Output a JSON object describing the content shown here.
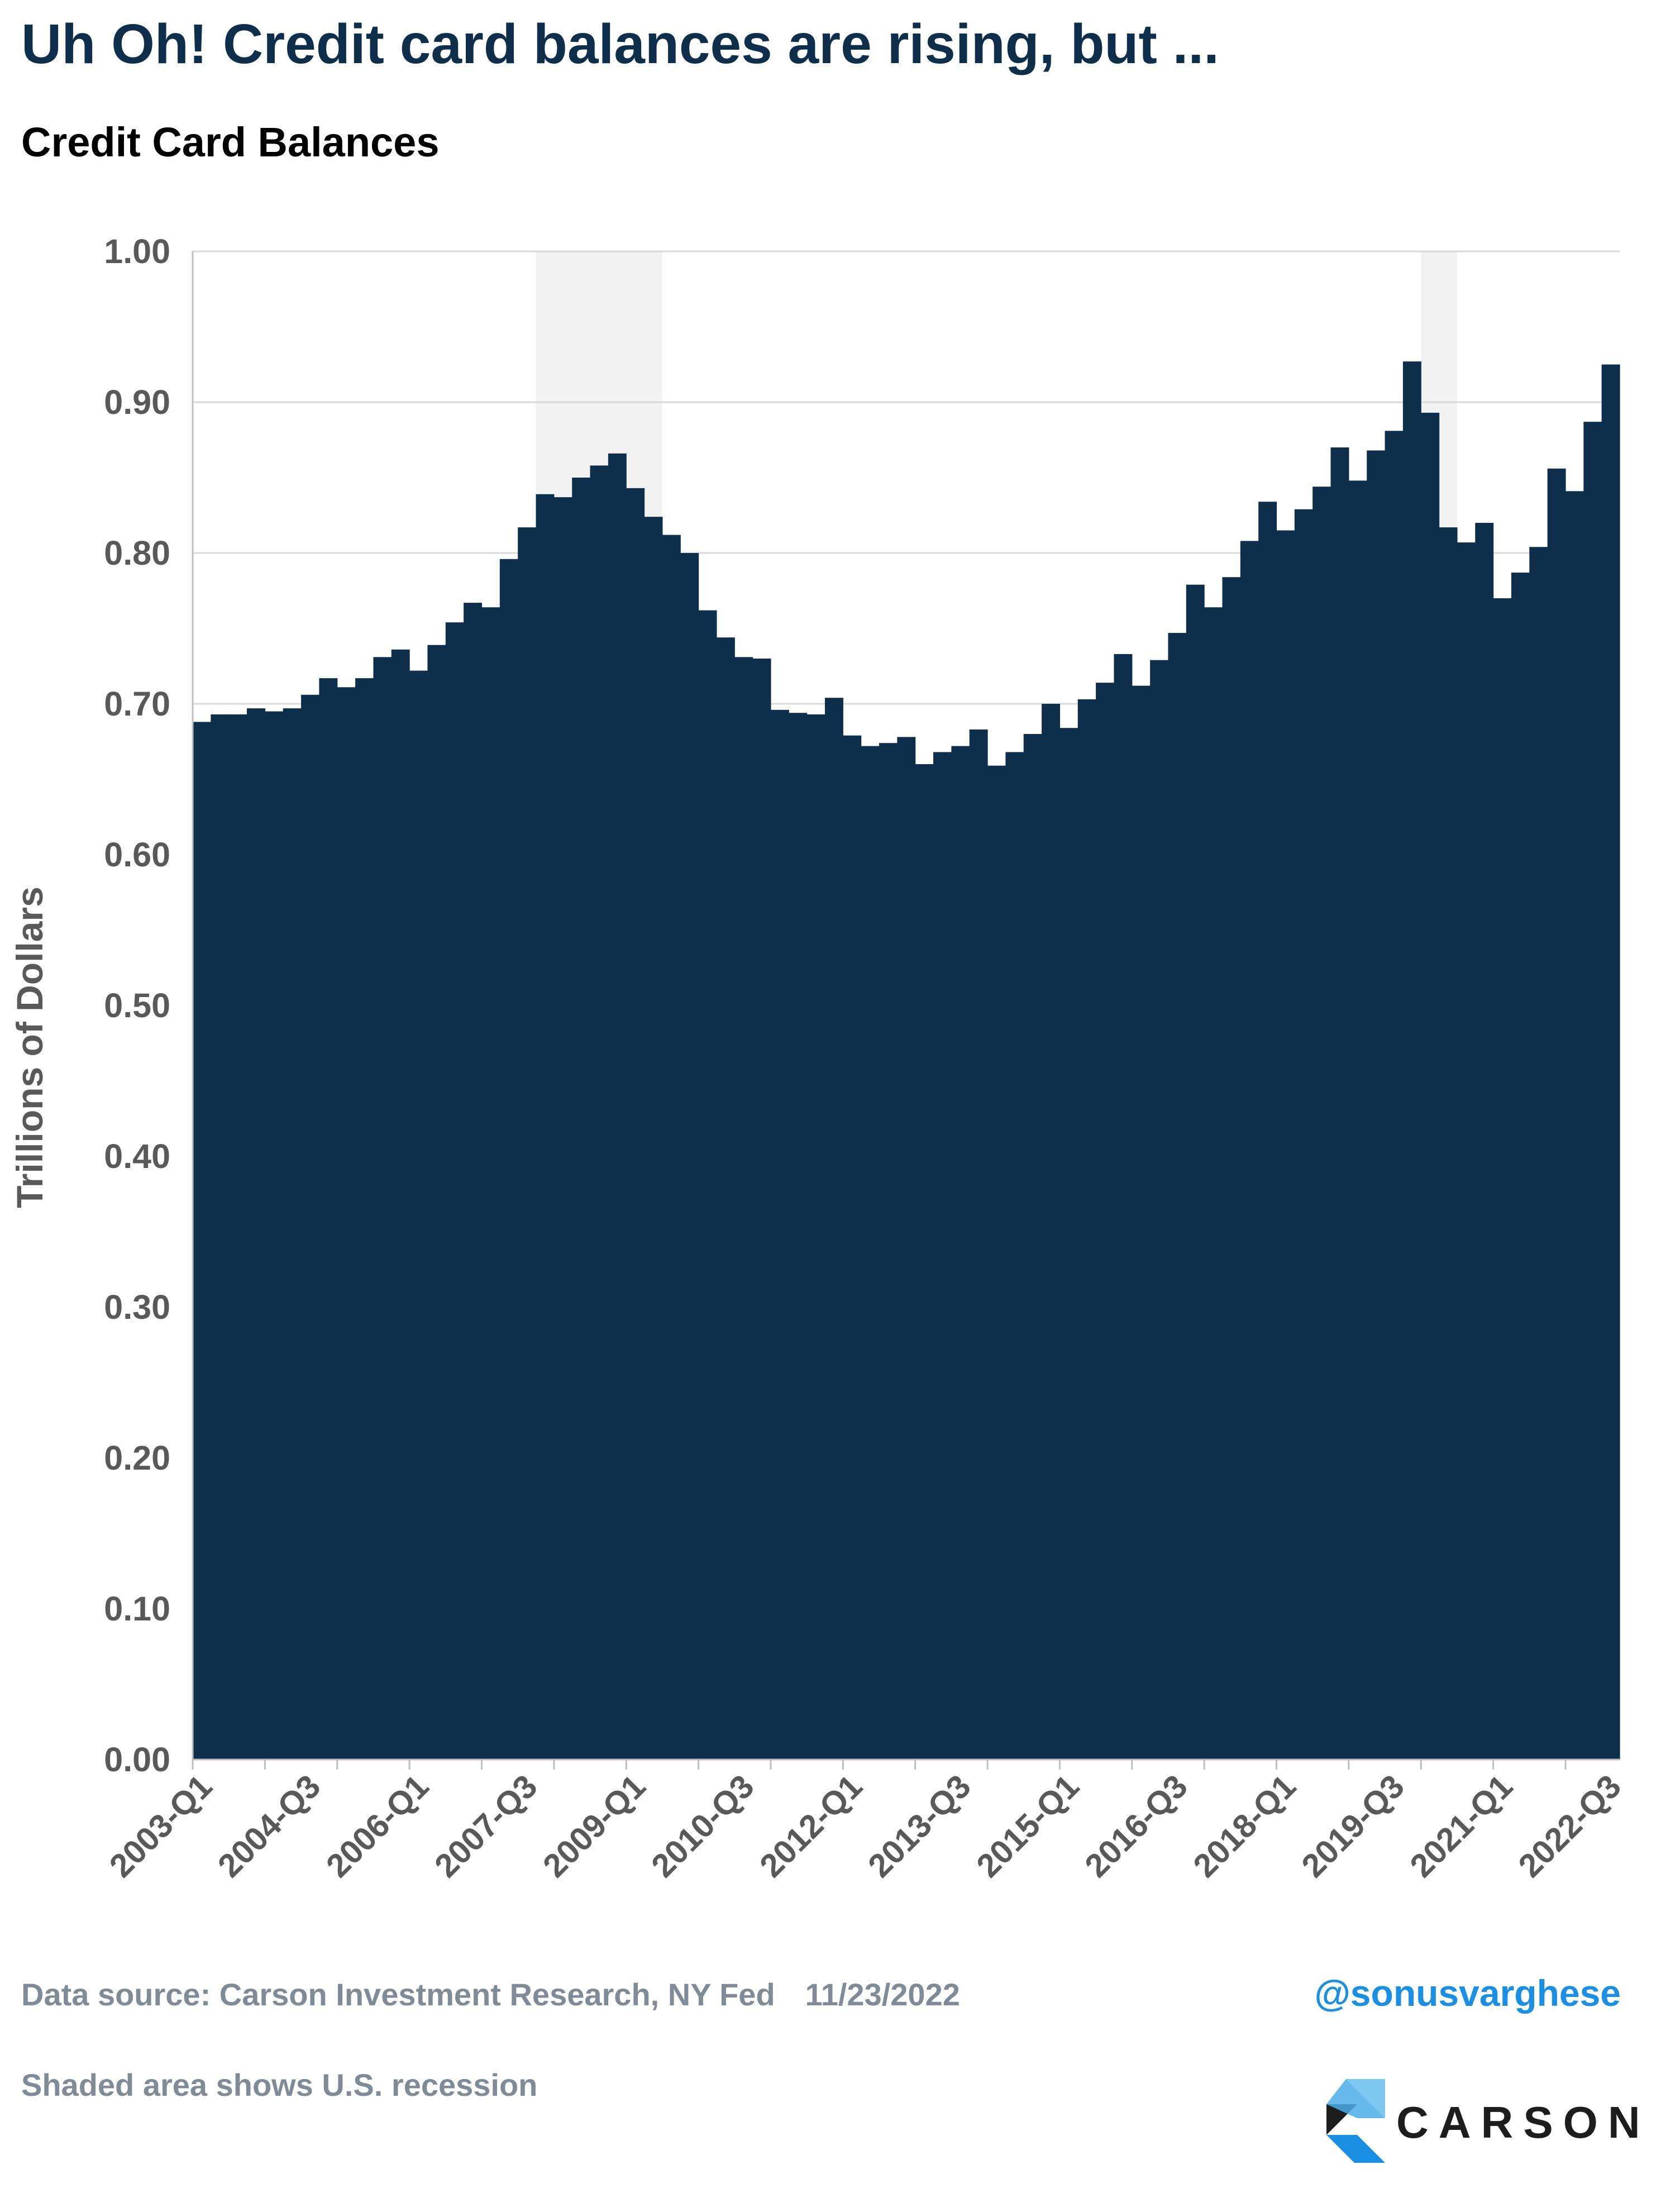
{
  "header": {
    "title": "Uh Oh! Credit card balances are rising, but ...",
    "subtitle": "Credit Card Balances"
  },
  "chart_data": {
    "type": "area",
    "ylabel": "Trillions of Dollars",
    "ylim": [
      0,
      1.0
    ],
    "y_ticks": [
      "0.00",
      "0.10",
      "0.20",
      "0.30",
      "0.40",
      "0.50",
      "0.60",
      "0.70",
      "0.80",
      "0.90",
      "1.00"
    ],
    "x_tick_labels": [
      "2003-Q1",
      "2004-Q3",
      "2006-Q1",
      "2007-Q3",
      "2009-Q1",
      "2010-Q3",
      "2012-Q1",
      "2013-Q3",
      "2015-Q1",
      "2016-Q3",
      "2018-Q1",
      "2019-Q3",
      "2021-Q1",
      "2022-Q3"
    ],
    "x_start": "2003-Q1",
    "x_end": "2022-Q3",
    "grid": true,
    "color": "#0e2f4c",
    "recession_color": "#f2f2f2",
    "recessions": [
      {
        "start": "2007-Q4",
        "end": "2009-Q2"
      },
      {
        "start": "2020-Q1",
        "end": "2020-Q2"
      }
    ],
    "values": [
      0.688,
      0.693,
      0.693,
      0.697,
      0.695,
      0.697,
      0.706,
      0.717,
      0.711,
      0.717,
      0.731,
      0.736,
      0.722,
      0.739,
      0.754,
      0.767,
      0.764,
      0.796,
      0.817,
      0.839,
      0.837,
      0.85,
      0.858,
      0.866,
      0.843,
      0.824,
      0.812,
      0.8,
      0.762,
      0.744,
      0.731,
      0.73,
      0.696,
      0.694,
      0.693,
      0.704,
      0.679,
      0.672,
      0.674,
      0.678,
      0.66,
      0.668,
      0.672,
      0.683,
      0.659,
      0.668,
      0.68,
      0.7,
      0.684,
      0.703,
      0.714,
      0.733,
      0.712,
      0.729,
      0.747,
      0.779,
      0.764,
      0.784,
      0.808,
      0.834,
      0.815,
      0.829,
      0.844,
      0.87,
      0.848,
      0.868,
      0.881,
      0.927,
      0.893,
      0.817,
      0.807,
      0.82,
      0.77,
      0.787,
      0.804,
      0.856,
      0.841,
      0.887,
      0.925
    ]
  },
  "footer": {
    "source": "Data source: Carson Investment Research, NY Fed",
    "date": "11/23/2022",
    "note": "Shaded area shows U.S. recession",
    "handle": "@sonusvarghese",
    "logo_text": "CARSON"
  }
}
